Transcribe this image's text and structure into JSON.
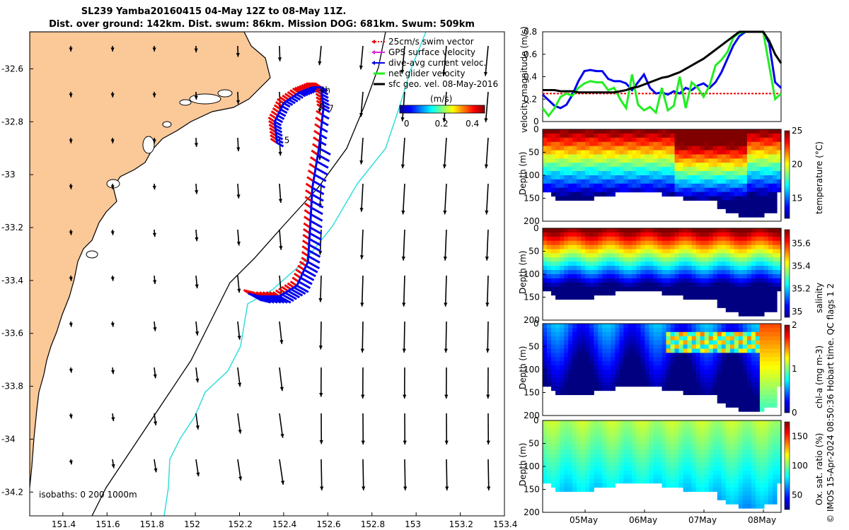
{
  "title": {
    "line1": "SL239 Yamba20160415 04-May 12Z to 08-May 11Z.",
    "line2": "Dist. over ground: 142km. Dist. swum: 86km. Mission DOG: 681km. Swum: 509km"
  },
  "credit": "© IMOS 15-Apr-2024 08:50:36 Hobart time. QC flags 1  2",
  "colors": {
    "land": "#fbc898",
    "isobath200": "#000000",
    "isobath1000": "#33dddd",
    "swim": "#ee0000",
    "dive_avg": "#0000ee",
    "net": "#22ee22",
    "geo": "#000000"
  },
  "chart_data": [
    {
      "type": "map",
      "x_ticks": [
        "151.4",
        "151.6",
        "151.8",
        "152",
        "152.2",
        "152.4",
        "152.6",
        "152.8",
        "153",
        "153.2",
        "153.4"
      ],
      "y_ticks": [
        "-32.6",
        "-32.8",
        "-33",
        "-33.2",
        "-33.4",
        "-33.6",
        "-33.8",
        "-34",
        "-34.2"
      ],
      "xlim": [
        151.25,
        153.4
      ],
      "ylim": [
        -34.29,
        -32.46
      ],
      "legend": [
        {
          "label": "25cm/s swim vector",
          "color": "#ee0000",
          "style": "dotted"
        },
        {
          "label": "GPS surface velocity",
          "color": "#dd22dd",
          "style": "arrow"
        },
        {
          "label": "dive-avg current veloc.",
          "color": "#0000ee",
          "style": "arrow"
        },
        {
          "label": "net glider velocity",
          "color": "#22ee22",
          "style": "line"
        },
        {
          "label": "sfc geo. vel. 08-May-2016",
          "color": "#000000",
          "style": "line"
        }
      ],
      "colorbar": {
        "label": "(m/s)",
        "ticks": [
          "0",
          "0.2",
          "0.4"
        ],
        "range": [
          -0.05,
          0.5
        ]
      },
      "day_labels": [
        {
          "text": "4h",
          "lon": 152.55,
          "lat": -32.68
        },
        {
          "text": "5",
          "lon": 152.39,
          "lat": -32.87
        },
        {
          "text": "6",
          "lon": 152.55,
          "lat": -32.74
        },
        {
          "text": "7",
          "lon": 152.59,
          "lat": -32.75
        }
      ],
      "isobath_label": "isobaths: 0   200   1000m",
      "track": [
        [
          152.37,
          -32.88
        ],
        [
          152.36,
          -32.8
        ],
        [
          152.4,
          -32.73
        ],
        [
          152.47,
          -32.69
        ],
        [
          152.53,
          -32.67
        ],
        [
          152.57,
          -32.67
        ],
        [
          152.58,
          -32.75
        ],
        [
          152.56,
          -32.9
        ],
        [
          152.53,
          -33.05
        ],
        [
          152.52,
          -33.2
        ],
        [
          152.51,
          -33.33
        ],
        [
          152.46,
          -33.42
        ],
        [
          152.38,
          -33.46
        ],
        [
          152.29,
          -33.46
        ],
        [
          152.24,
          -33.45
        ]
      ]
    },
    {
      "type": "line",
      "ylabel": "velocity magnitude (m/s)",
      "ylim": [
        0,
        0.8
      ],
      "y_ticks": [
        "0",
        "0.2",
        "0.4",
        "0.6",
        "0.8"
      ],
      "x": [
        0,
        0.1,
        0.2,
        0.3,
        0.4,
        0.5,
        0.6,
        0.7,
        0.8,
        0.9,
        1.0,
        1.1,
        1.2,
        1.3,
        1.4,
        1.5,
        1.6,
        1.7,
        1.8,
        1.9,
        2.0,
        2.1,
        2.2,
        2.3,
        2.4,
        2.5,
        2.6,
        2.7,
        2.8,
        2.9,
        3.0,
        3.1,
        3.2,
        3.3,
        3.4,
        3.5,
        3.6,
        3.7,
        3.8,
        3.9,
        4.0
      ],
      "series": [
        {
          "name": "swim",
          "color": "#ee0000",
          "values": [
            0.25,
            0.25,
            0.25,
            0.25,
            0.25,
            0.25,
            0.25,
            0.25,
            0.25,
            0.25,
            0.25,
            0.25,
            0.25,
            0.25,
            0.25,
            0.25,
            0.25,
            0.25,
            0.25,
            0.25,
            0.25,
            0.25,
            0.25,
            0.25,
            0.25,
            0.25,
            0.25,
            0.25,
            0.25,
            0.25,
            0.25,
            0.25,
            0.25,
            0.25,
            0.25,
            0.25,
            0.25,
            0.25,
            0.25,
            0.25,
            0.25
          ]
        },
        {
          "name": "dive-avg",
          "color": "#0000ee",
          "values": [
            0.24,
            0.19,
            0.14,
            0.12,
            0.15,
            0.24,
            0.36,
            0.45,
            0.46,
            0.45,
            0.45,
            0.38,
            0.36,
            0.36,
            0.34,
            0.28,
            0.35,
            0.42,
            0.3,
            0.25,
            0.26,
            0.24,
            0.27,
            0.25,
            0.3,
            0.28,
            0.32,
            0.34,
            0.3,
            0.35,
            0.44,
            0.56,
            0.68,
            0.76,
            0.8,
            0.8,
            0.8,
            0.8,
            0.7,
            0.35,
            0.3
          ]
        },
        {
          "name": "net",
          "color": "#22ee22",
          "values": [
            0.12,
            0.05,
            0.12,
            0.22,
            0.25,
            0.23,
            0.3,
            0.34,
            0.36,
            0.35,
            0.35,
            0.28,
            0.3,
            0.2,
            0.12,
            0.42,
            0.15,
            0.1,
            0.13,
            0.08,
            0.3,
            0.1,
            0.14,
            0.4,
            0.12,
            0.35,
            0.3,
            0.22,
            0.32,
            0.5,
            0.55,
            0.62,
            0.75,
            0.79,
            0.8,
            0.8,
            0.8,
            0.8,
            0.5,
            0.2,
            0.25
          ]
        },
        {
          "name": "geo",
          "color": "#000000",
          "values": [
            0.28,
            0.28,
            0.28,
            0.27,
            0.27,
            0.27,
            0.26,
            0.26,
            0.26,
            0.26,
            0.26,
            0.26,
            0.26,
            0.27,
            0.28,
            0.3,
            0.31,
            0.33,
            0.35,
            0.37,
            0.39,
            0.4,
            0.42,
            0.44,
            0.47,
            0.5,
            0.53,
            0.56,
            0.6,
            0.64,
            0.68,
            0.72,
            0.76,
            0.8,
            0.8,
            0.8,
            0.8,
            0.8,
            0.72,
            0.6,
            0.52
          ]
        }
      ]
    },
    {
      "type": "heatmap",
      "ylabel": "Depth (m)",
      "colorbar_label": "temperature (°C)",
      "ylim": [
        0,
        200
      ],
      "y_ticks": [
        "0",
        "50",
        "100",
        "150",
        "200"
      ],
      "cb_ticks": [
        "15",
        "20",
        "25"
      ],
      "cb_range": [
        12,
        25
      ]
    },
    {
      "type": "heatmap",
      "ylabel": "Depth (m)",
      "colorbar_label": "salinity",
      "ylim": [
        0,
        200
      ],
      "y_ticks": [
        "0",
        "50",
        "100",
        "150",
        "200"
      ],
      "cb_ticks": [
        "35",
        "35.2",
        "35.4",
        "35.6"
      ],
      "cb_range": [
        34.95,
        35.72
      ]
    },
    {
      "type": "heatmap",
      "ylabel": "Depth (m)",
      "colorbar_label": "chl-a (mg m-3)",
      "ylim": [
        0,
        200
      ],
      "y_ticks": [
        "0",
        "50",
        "100",
        "150",
        "200"
      ],
      "cb_ticks": [
        "0",
        "1",
        "2"
      ],
      "cb_range": [
        0,
        2
      ]
    },
    {
      "type": "heatmap",
      "ylabel": "Depth (m)",
      "colorbar_label": "Ox. sat. ratio (%)",
      "ylim": [
        0,
        200
      ],
      "y_ticks": [
        "0",
        "50",
        "100",
        "150",
        "200"
      ],
      "cb_ticks": [
        "50",
        "100",
        "150"
      ],
      "cb_range": [
        25,
        175
      ],
      "x_ticks": [
        "05May",
        "06May",
        "07May",
        "08May"
      ]
    }
  ]
}
